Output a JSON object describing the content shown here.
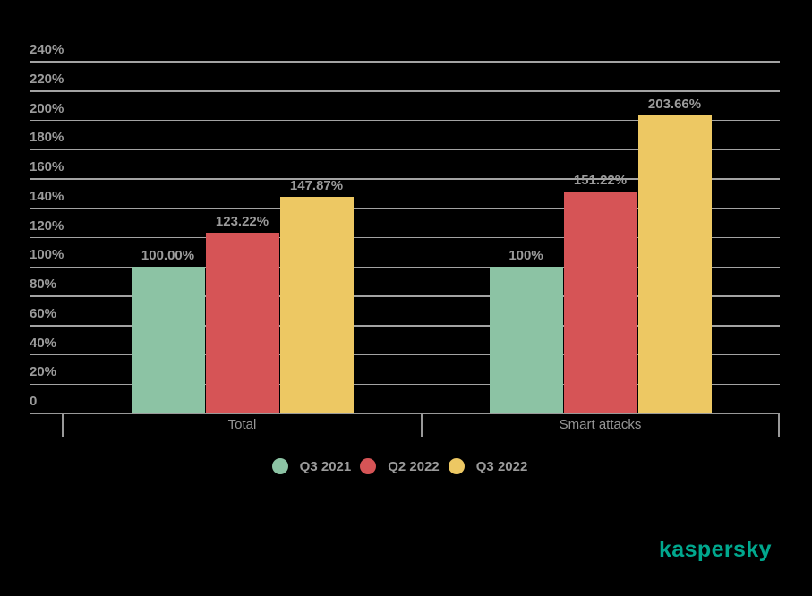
{
  "chart_data": {
    "type": "bar",
    "categories": [
      "Total",
      "Smart attacks"
    ],
    "series": [
      {
        "name": "Q3 2021",
        "color": "#8CC3A4",
        "values": [
          100.0,
          100.0
        ],
        "labels": [
          "100.00%",
          "100%"
        ]
      },
      {
        "name": "Q2 2022",
        "color": "#D65456",
        "values": [
          123.22,
          151.22
        ],
        "labels": [
          "123.22%",
          "151.22%"
        ]
      },
      {
        "name": "Q3 2022",
        "color": "#EDC863",
        "values": [
          147.87,
          203.66
        ],
        "labels": [
          "147.87%",
          "203.66%"
        ]
      }
    ],
    "y_axis": {
      "min": 0,
      "max": 240,
      "step": 20,
      "tick_labels": [
        "240%",
        "220%",
        "200%",
        "180%",
        "160%",
        "140%",
        "120%",
        "100%",
        "80%",
        "60%",
        "40%",
        "20%",
        "0"
      ],
      "gridlines": true
    },
    "legend": {
      "position": "bottom",
      "entries": [
        "Q3 2021",
        "Q2 2022",
        "Q3 2022"
      ]
    }
  },
  "branding": {
    "logo_text": "kaspersky",
    "logo_color": "#00A88E"
  },
  "colors": {
    "background": "#000000",
    "text": "#9B9B9B",
    "gridline": "#A3A3A3",
    "axis": "#999999"
  }
}
